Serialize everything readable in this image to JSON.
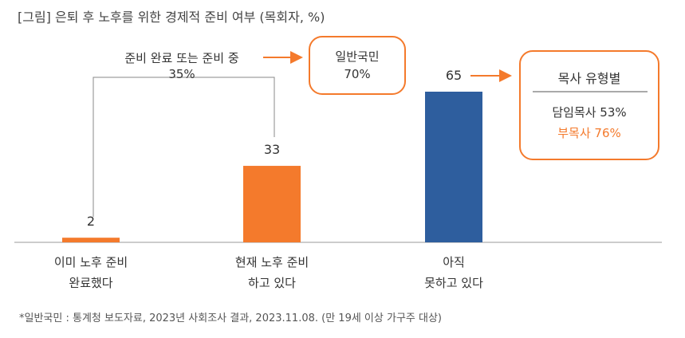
{
  "title": "[그림] 은퇴 후 노후를 위한 경제적 준비 여부 (목회자, %)",
  "colors": {
    "orange": "#f47a2c",
    "blue": "#2e5e9e",
    "line": "#888888"
  },
  "chart_data": {
    "type": "bar",
    "title": "[그림] 은퇴 후 노후를 위한 경제적 준비 여부 (목회자, %)",
    "categories": [
      [
        "이미 노후 준비",
        "완료했다"
      ],
      [
        "현재 노후 준비",
        "하고 있다"
      ],
      [
        "아직",
        "못하고 있다"
      ]
    ],
    "values": [
      2,
      33,
      65
    ],
    "value_labels": [
      "2",
      "33",
      "65"
    ],
    "bar_colors": [
      "#f47a2c",
      "#f47a2c",
      "#2e5e9e"
    ],
    "ylim": [
      0,
      70
    ]
  },
  "annotations": {
    "combined_label": "준비 완료 또는 준비 중",
    "combined_value": "35%",
    "general_box": {
      "label": "일반국민",
      "value": "70%"
    },
    "pastor_box": {
      "title": "목사 유형별",
      "senior": "담임목사  53%",
      "associate": "부목사  76%"
    }
  },
  "footnote": "*일반국민 : 통계청 보도자료, 2023년 사회조사 결과, 2023.11.08. (만 19세 이상 가구주 대상)"
}
